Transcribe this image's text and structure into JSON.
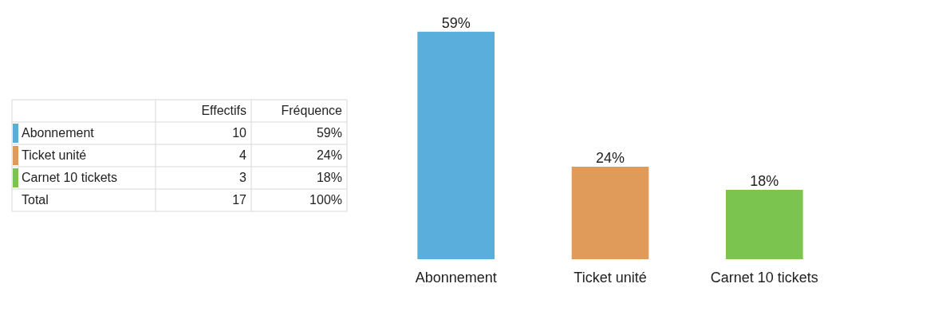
{
  "chart_data": [
    {
      "type": "other",
      "categories": [
        "Effectifs",
        "Fréquence"
      ],
      "y_categories": [
        "Abonnement",
        "Ticket unité",
        "Carnet 10 tickets",
        "Total"
      ],
      "cell_labels": [
        [
          "10",
          "59%"
        ],
        [
          "4",
          "24%"
        ],
        [
          "3",
          "18%"
        ],
        [
          "17",
          "100%"
        ]
      ],
      "colors": [
        "#5aaedc",
        "#e09a5a",
        "#7cc450",
        null
      ]
    },
    {
      "type": "bar",
      "categories": [
        "Abonnement",
        "Ticket unité",
        "Carnet 10 tickets"
      ],
      "values": [
        59,
        24,
        18
      ],
      "colors": [
        "#5aaedc",
        "#e09a5a",
        "#7cc450"
      ],
      "value_labels": [
        "59%",
        "24%",
        "18%"
      ]
    }
  ]
}
